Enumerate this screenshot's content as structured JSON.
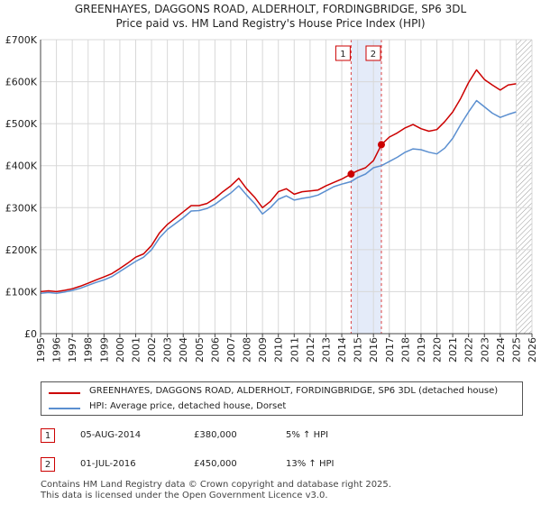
{
  "chart_data": {
    "type": "line",
    "title": "GREENHAYES, DAGGONS ROAD, ALDERHOLT, FORDINGBRIDGE, SP6 3DL",
    "subtitle": "Price paid vs. HM Land Registry's House Price Index (HPI)",
    "xlabel": "",
    "ylabel": "",
    "xlim": [
      1995,
      2026
    ],
    "ylim": [
      0,
      700000
    ],
    "y_ticks": [
      0,
      100000,
      200000,
      300000,
      400000,
      500000,
      600000,
      700000
    ],
    "y_tick_labels": [
      "£0",
      "£100K",
      "£200K",
      "£300K",
      "£400K",
      "£500K",
      "£600K",
      "£700K"
    ],
    "x_ticks": [
      "1995",
      "1996",
      "1997",
      "1998",
      "1999",
      "2000",
      "2001",
      "2002",
      "2003",
      "2004",
      "2005",
      "2006",
      "2007",
      "2008",
      "2009",
      "2010",
      "2011",
      "2012",
      "2013",
      "2014",
      "2015",
      "2016",
      "2017",
      "2018",
      "2019",
      "2020",
      "2021",
      "2022",
      "2023",
      "2024",
      "2025",
      "2026"
    ],
    "grid": true,
    "legend_position": "bottom",
    "series": [
      {
        "name": "GREENHAYES, DAGGONS ROAD, ALDERHOLT, FORDINGBRIDGE, SP6 3DL (detached house)",
        "color": "#cc0000",
        "x": [
          1995.0,
          1995.5,
          1996.0,
          1996.5,
          1997.0,
          1997.5,
          1998.0,
          1998.5,
          1999.0,
          1999.5,
          2000.0,
          2000.5,
          2001.0,
          2001.5,
          2002.0,
          2002.5,
          2003.0,
          2003.5,
          2004.0,
          2004.5,
          2005.0,
          2005.5,
          2006.0,
          2006.5,
          2007.0,
          2007.5,
          2008.0,
          2008.5,
          2009.0,
          2009.5,
          2010.0,
          2010.5,
          2011.0,
          2011.5,
          2012.0,
          2012.5,
          2013.0,
          2013.5,
          2014.0,
          2014.59,
          2015.0,
          2015.5,
          2016.0,
          2016.5,
          2017.0,
          2017.5,
          2018.0,
          2018.5,
          2019.0,
          2019.5,
          2020.0,
          2020.5,
          2021.0,
          2021.5,
          2022.0,
          2022.5,
          2023.0,
          2023.5,
          2024.0,
          2024.5,
          2025.0
        ],
        "y": [
          100000,
          102000,
          100000,
          103000,
          107000,
          113000,
          120000,
          128000,
          135000,
          143000,
          155000,
          168000,
          182000,
          190000,
          210000,
          240000,
          260000,
          275000,
          290000,
          305000,
          305000,
          310000,
          322000,
          338000,
          352000,
          370000,
          345000,
          325000,
          300000,
          315000,
          338000,
          345000,
          332000,
          338000,
          340000,
          342000,
          352000,
          360000,
          368000,
          380000,
          388000,
          395000,
          412000,
          450000,
          468000,
          478000,
          490000,
          498000,
          488000,
          482000,
          486000,
          505000,
          528000,
          560000,
          598000,
          628000,
          605000,
          592000,
          580000,
          592000,
          595000
        ]
      },
      {
        "name": "HPI: Average price, detached house, Dorset",
        "color": "#5b8fd0",
        "x": [
          1995.0,
          1995.5,
          1996.0,
          1996.5,
          1997.0,
          1997.5,
          1998.0,
          1998.5,
          1999.0,
          1999.5,
          2000.0,
          2000.5,
          2001.0,
          2001.5,
          2002.0,
          2002.5,
          2003.0,
          2003.5,
          2004.0,
          2004.5,
          2005.0,
          2005.5,
          2006.0,
          2006.5,
          2007.0,
          2007.5,
          2008.0,
          2008.5,
          2009.0,
          2009.5,
          2010.0,
          2010.5,
          2011.0,
          2011.5,
          2012.0,
          2012.5,
          2013.0,
          2013.5,
          2014.0,
          2014.59,
          2015.0,
          2015.5,
          2016.0,
          2016.5,
          2017.0,
          2017.5,
          2018.0,
          2018.5,
          2019.0,
          2019.5,
          2020.0,
          2020.5,
          2021.0,
          2021.5,
          2022.0,
          2022.5,
          2023.0,
          2023.5,
          2024.0,
          2024.5,
          2025.0
        ],
        "y": [
          96000,
          98000,
          96000,
          99000,
          103000,
          108000,
          115000,
          122000,
          128000,
          136000,
          148000,
          160000,
          172000,
          182000,
          200000,
          228000,
          248000,
          262000,
          276000,
          292000,
          293000,
          298000,
          308000,
          322000,
          335000,
          352000,
          330000,
          310000,
          285000,
          300000,
          320000,
          328000,
          318000,
          322000,
          325000,
          330000,
          340000,
          350000,
          356000,
          362000,
          372000,
          380000,
          395000,
          400000,
          410000,
          420000,
          432000,
          440000,
          438000,
          432000,
          428000,
          442000,
          465000,
          498000,
          528000,
          555000,
          540000,
          525000,
          515000,
          522000,
          528000
        ]
      }
    ],
    "annotations": [
      {
        "label": "1",
        "x": 2014.59,
        "y": 380000
      },
      {
        "label": "2",
        "x": 2016.5,
        "y": 450000
      }
    ],
    "shaded_range": [
      2014.59,
      2016.5
    ],
    "hatched_from": 2025.0
  },
  "legend": {
    "items": [
      {
        "label": "GREENHAYES, DAGGONS ROAD, ALDERHOLT, FORDINGBRIDGE, SP6 3DL (detached house)",
        "color": "#cc0000"
      },
      {
        "label": "HPI: Average price, detached house, Dorset",
        "color": "#5b8fd0"
      }
    ]
  },
  "sales": [
    {
      "badge": "1",
      "date": "05-AUG-2014",
      "price": "£380,000",
      "hpi": "5% ↑ HPI"
    },
    {
      "badge": "2",
      "date": "01-JUL-2016",
      "price": "£450,000",
      "hpi": "13% ↑ HPI"
    }
  ],
  "footer": {
    "line1": "Contains HM Land Registry data © Crown copyright and database right 2025.",
    "line2": "This data is licensed under the Open Government Licence v3.0."
  }
}
